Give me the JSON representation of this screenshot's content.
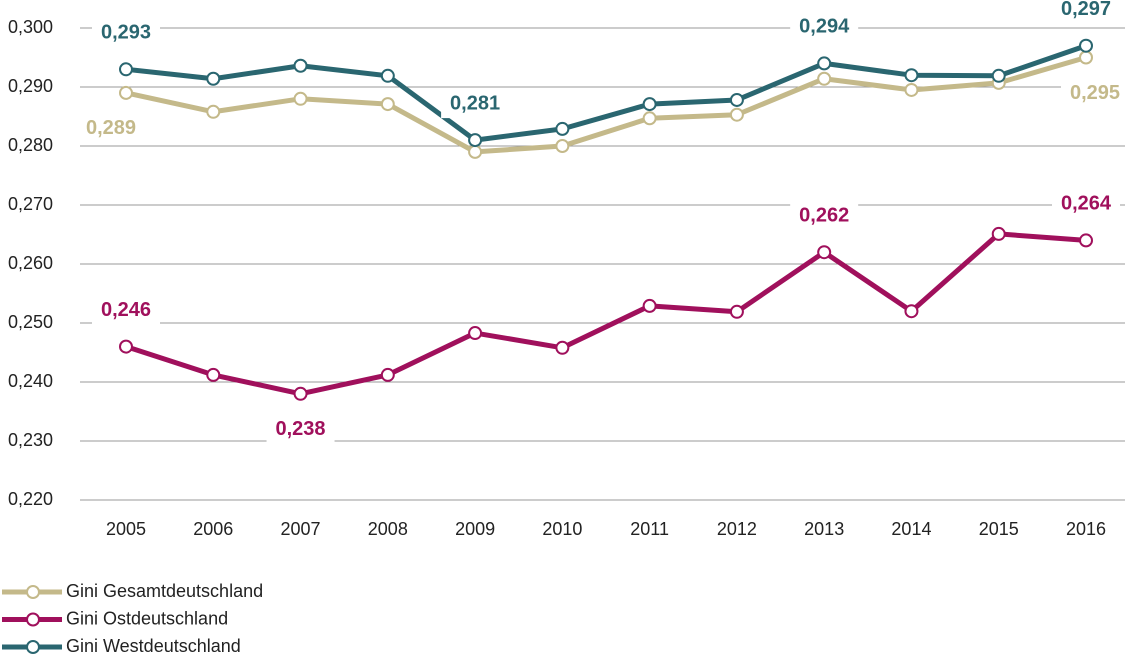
{
  "chart_data": {
    "type": "line",
    "categories": [
      "2005",
      "2006",
      "2007",
      "2008",
      "2009",
      "2010",
      "2011",
      "2012",
      "2013",
      "2014",
      "2015",
      "2016"
    ],
    "series": [
      {
        "name": "Gini Gesamtdeutschland",
        "color": "#c4b98a",
        "values": [
          0.289,
          0.2858,
          0.288,
          0.2871,
          0.279,
          0.28,
          0.2847,
          0.2853,
          0.2914,
          0.2895,
          0.2907,
          0.295
        ],
        "value_labels": [
          "0,289",
          null,
          null,
          null,
          null,
          null,
          null,
          null,
          null,
          null,
          null,
          "0,295"
        ]
      },
      {
        "name": "Gini Ostdeutschland",
        "color": "#a0105c",
        "values": [
          0.246,
          0.2412,
          0.238,
          0.2412,
          0.2483,
          0.2458,
          0.2529,
          0.2519,
          0.262,
          0.252,
          0.2651,
          0.264
        ],
        "value_labels": [
          "0,246",
          null,
          "0,238",
          null,
          null,
          null,
          null,
          null,
          "0,262",
          null,
          null,
          "0,264"
        ]
      },
      {
        "name": "Gini Westdeutschland",
        "color": "#2a6670",
        "values": [
          0.293,
          0.2914,
          0.2936,
          0.2919,
          0.281,
          0.2829,
          0.2871,
          0.2878,
          0.294,
          0.292,
          0.2919,
          0.297
        ],
        "value_labels": [
          "0,293",
          null,
          null,
          null,
          "0,281",
          null,
          null,
          null,
          "0,294",
          null,
          null,
          "0,297"
        ]
      }
    ],
    "ylim": [
      0.22,
      0.3
    ],
    "yticks": [
      {
        "value": 0.22,
        "label": "0,220"
      },
      {
        "value": 0.23,
        "label": "0,230"
      },
      {
        "value": 0.24,
        "label": "0,240"
      },
      {
        "value": 0.25,
        "label": "0,250"
      },
      {
        "value": 0.26,
        "label": "0,260"
      },
      {
        "value": 0.27,
        "label": "0,270"
      },
      {
        "value": 0.28,
        "label": "0,280"
      },
      {
        "value": 0.29,
        "label": "0,290"
      },
      {
        "value": 0.3,
        "label": "0,300"
      }
    ],
    "grid": true
  }
}
